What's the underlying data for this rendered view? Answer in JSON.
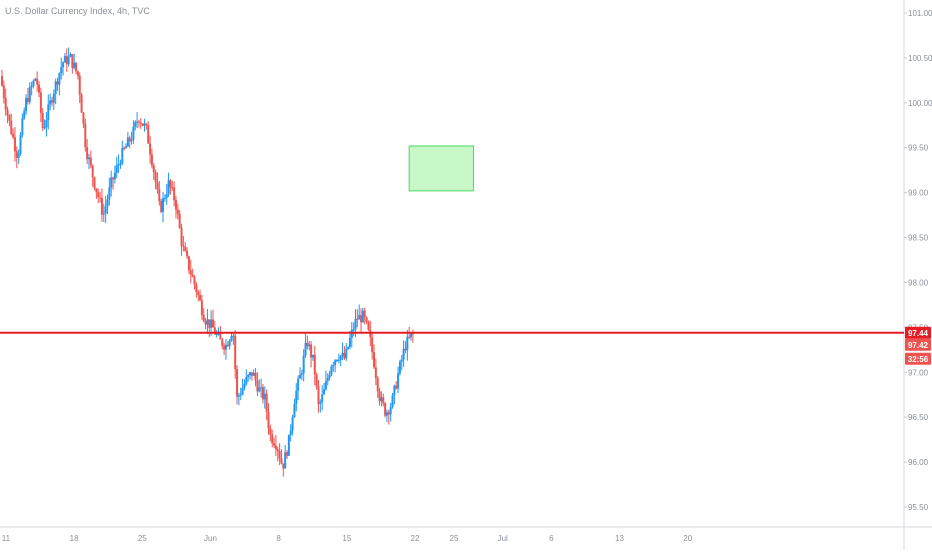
{
  "chart_data": {
    "type": "candlestick",
    "title": "U.S. Dollar Currency Index, 4h, TVC",
    "colors": {
      "up": "#2196f3",
      "down": "#ef5350",
      "level_line": "#e51c23",
      "zone_fill": "#c8f7c8",
      "zone_border": "#4cd964",
      "axis_text": "#8a8f99",
      "badge_price": "#e51c23",
      "badge_last": "#ef5350",
      "badge_timer": "#ef5350"
    },
    "y_axis": {
      "min": 95.25,
      "max": 101.1,
      "ticks": [
        95.5,
        96.0,
        96.5,
        97.0,
        97.5,
        98.0,
        98.5,
        99.0,
        99.5,
        100.0,
        100.5,
        101.0
      ],
      "tick_labels": [
        "95.50",
        "96.00",
        "96.50",
        "97.00",
        "97.50",
        "98.00",
        "98.50",
        "99.00",
        "99.50",
        "100.00",
        "100.50",
        "101.00"
      ]
    },
    "x_axis": {
      "min_day": 10.6,
      "max_day": 68.5,
      "ticks": [
        {
          "label": "11",
          "day": 11
        },
        {
          "label": "18",
          "day": 18
        },
        {
          "label": "25",
          "day": 25
        },
        {
          "label": "Jun",
          "day": 32
        },
        {
          "label": "8",
          "day": 39
        },
        {
          "label": "15",
          "day": 46
        },
        {
          "label": "22",
          "day": 53
        },
        {
          "label": "25",
          "day": 57
        },
        {
          "label": "Jul",
          "day": 62
        },
        {
          "label": "6",
          "day": 67
        },
        {
          "label": "13",
          "day": 74
        },
        {
          "label": "20",
          "day": 81
        }
      ]
    },
    "level_line": 97.44,
    "zone": {
      "day_start": 52.4,
      "day_end": 59.0,
      "top": 99.52,
      "bottom": 99.02
    },
    "badges": {
      "level": "97.44",
      "last": "97.42",
      "timer": "32:56"
    },
    "path_points": [
      [
        10.6,
        100.3
      ],
      [
        11.5,
        99.8
      ],
      [
        12.4,
        99.4
      ],
      [
        13.2,
        100.0
      ],
      [
        14.3,
        100.3
      ],
      [
        15.0,
        99.7
      ],
      [
        16.0,
        100.1
      ],
      [
        17.0,
        100.45
      ],
      [
        17.8,
        100.5
      ],
      [
        18.6,
        100.3
      ],
      [
        19.4,
        99.5
      ],
      [
        20.3,
        99.1
      ],
      [
        21.2,
        98.75
      ],
      [
        22.0,
        99.1
      ],
      [
        23.0,
        99.4
      ],
      [
        24.2,
        99.65
      ],
      [
        24.8,
        99.85
      ],
      [
        25.6,
        99.7
      ],
      [
        26.3,
        99.3
      ],
      [
        27.0,
        98.8
      ],
      [
        27.9,
        99.1
      ],
      [
        28.6,
        98.9
      ],
      [
        29.3,
        98.4
      ],
      [
        30.2,
        98.1
      ],
      [
        30.8,
        97.9
      ],
      [
        31.6,
        97.6
      ],
      [
        32.4,
        97.5
      ],
      [
        33.1,
        97.35
      ],
      [
        33.8,
        97.3
      ],
      [
        34.5,
        97.5
      ],
      [
        34.9,
        96.7
      ],
      [
        35.8,
        96.9
      ],
      [
        36.5,
        97.0
      ],
      [
        37.2,
        96.8
      ],
      [
        37.8,
        96.7
      ],
      [
        38.3,
        96.3
      ],
      [
        39.0,
        96.2
      ],
      [
        39.6,
        95.95
      ],
      [
        40.2,
        96.2
      ],
      [
        40.8,
        96.7
      ],
      [
        41.5,
        97.0
      ],
      [
        42.1,
        97.35
      ],
      [
        42.8,
        97.1
      ],
      [
        43.3,
        96.6
      ],
      [
        43.9,
        96.8
      ],
      [
        44.6,
        97.1
      ],
      [
        45.3,
        97.2
      ],
      [
        46.0,
        97.15
      ],
      [
        46.6,
        97.4
      ],
      [
        47.2,
        97.6
      ],
      [
        47.9,
        97.62
      ],
      [
        48.5,
        97.4
      ],
      [
        49.0,
        97.1
      ],
      [
        49.6,
        96.7
      ],
      [
        50.2,
        96.55
      ],
      [
        50.8,
        96.65
      ],
      [
        51.5,
        97.0
      ],
      [
        52.2,
        97.3
      ],
      [
        52.9,
        97.42
      ]
    ],
    "seed": 7
  }
}
